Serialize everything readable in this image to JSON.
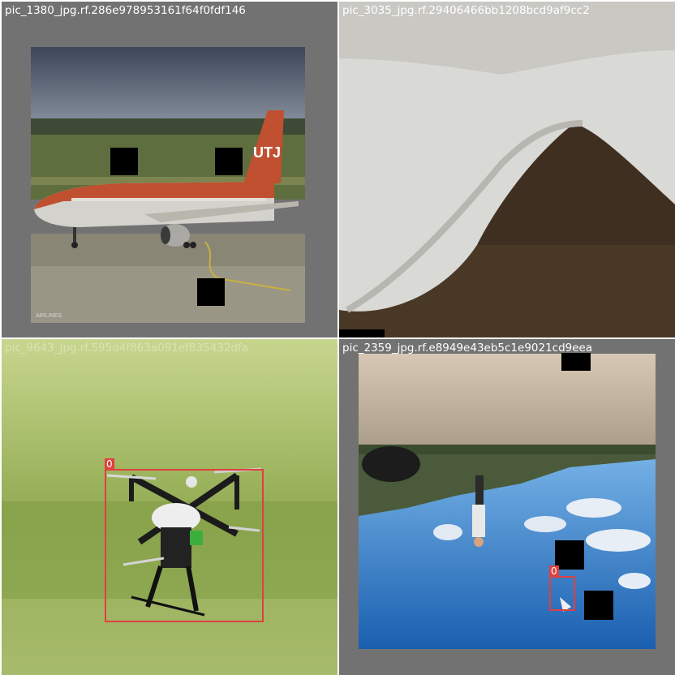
{
  "tiles": [
    {
      "caption": "pic_1380_jpg.rf.286e978953161f64f0fdf146",
      "subject": "airliner on runway",
      "livery_text": "UTJ",
      "boxes": []
    },
    {
      "caption": "pic_3035_jpg.rf.29406466bb1208bcd9af9cc2",
      "subject": "close-up of white bird in flight",
      "boxes": []
    },
    {
      "caption": "pic_9643_jpg.rf.595d4f863a091ef835432dfa",
      "subject": "quadcopter drone on grass",
      "boxes": [
        {
          "label": "0"
        }
      ]
    },
    {
      "caption": "pic_2359_jpg.rf.e8949e43eb5c1e9021cd9eea",
      "subject": "upside-down beach scene with sky",
      "boxes": [
        {
          "label": "0"
        }
      ]
    }
  ],
  "colors": {
    "bbox": "#e0403f",
    "padding_gray": "#727272",
    "caption": "#ffffff"
  }
}
